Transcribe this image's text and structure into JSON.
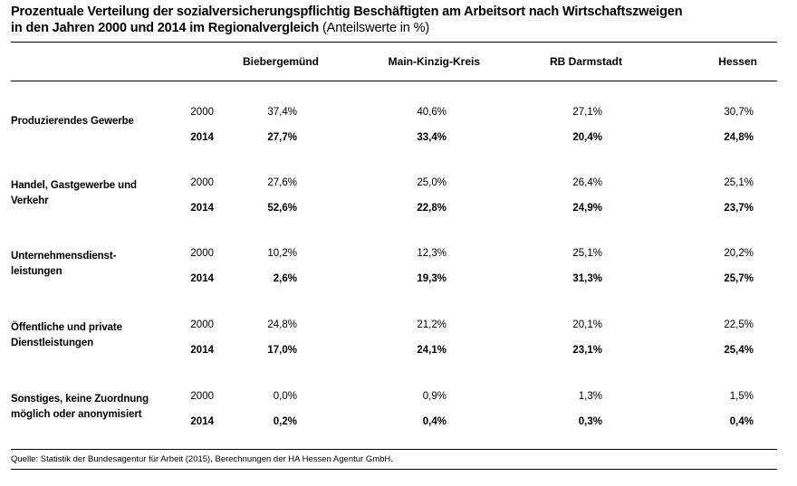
{
  "title": {
    "line1": "Prozentuale Verteilung der sozialversicherungspflichtig Beschäftigten am Arbeitsort nach Wirtschaftszweigen",
    "line2_bold": "in den Jahren 2000 und 2014 im Regionalvergleich",
    "line2_normal": " (Anteilswerte in %)"
  },
  "columns": [
    "Biebergemünd",
    "Main-Kinzig-Kreis",
    "RB Darmstadt",
    "Hessen"
  ],
  "rows": [
    {
      "category_line1": "Produzierendes Gewerbe",
      "category_line2": "",
      "year_a": "2000",
      "values_a": [
        "37,4%",
        "40,6%",
        "27,1%",
        "30,7%"
      ],
      "year_b": "2014",
      "values_b": [
        "27,7%",
        "33,4%",
        "20,4%",
        "24,8%"
      ]
    },
    {
      "category_line1": "Handel, Gastgewerbe und",
      "category_line2": "Verkehr",
      "year_a": "2000",
      "values_a": [
        "27,6%",
        "25,0%",
        "26,4%",
        "25,1%"
      ],
      "year_b": "2014",
      "values_b": [
        "52,6%",
        "22,8%",
        "24,9%",
        "23,7%"
      ]
    },
    {
      "category_line1": "Unternehmensdienst-",
      "category_line2": "leistungen",
      "year_a": "2000",
      "values_a": [
        "10,2%",
        "12,3%",
        "25,1%",
        "20,2%"
      ],
      "year_b": "2014",
      "values_b": [
        "2,6%",
        "19,3%",
        "31,3%",
        "25,7%"
      ]
    },
    {
      "category_line1": "Öffentliche und private",
      "category_line2": "Dienstleistungen",
      "year_a": "2000",
      "values_a": [
        "24,8%",
        "21,2%",
        "20,1%",
        "22,5%"
      ],
      "year_b": "2014",
      "values_b": [
        "17,0%",
        "24,1%",
        "23,1%",
        "25,4%"
      ]
    },
    {
      "category_line1": "Sonstiges, keine Zuordnung",
      "category_line2": "möglich oder anonymisiert",
      "year_a": "2000",
      "values_a": [
        "0,0%",
        "0,9%",
        "1,3%",
        "1,5%"
      ],
      "year_b": "2014",
      "values_b": [
        "0,2%",
        "0,4%",
        "0,3%",
        "0,4%"
      ]
    }
  ],
  "source": "Quelle: Statistik der Bundesagentur für Arbeit (2015), Berechnungen der HA Hessen Agentur GmbH."
}
